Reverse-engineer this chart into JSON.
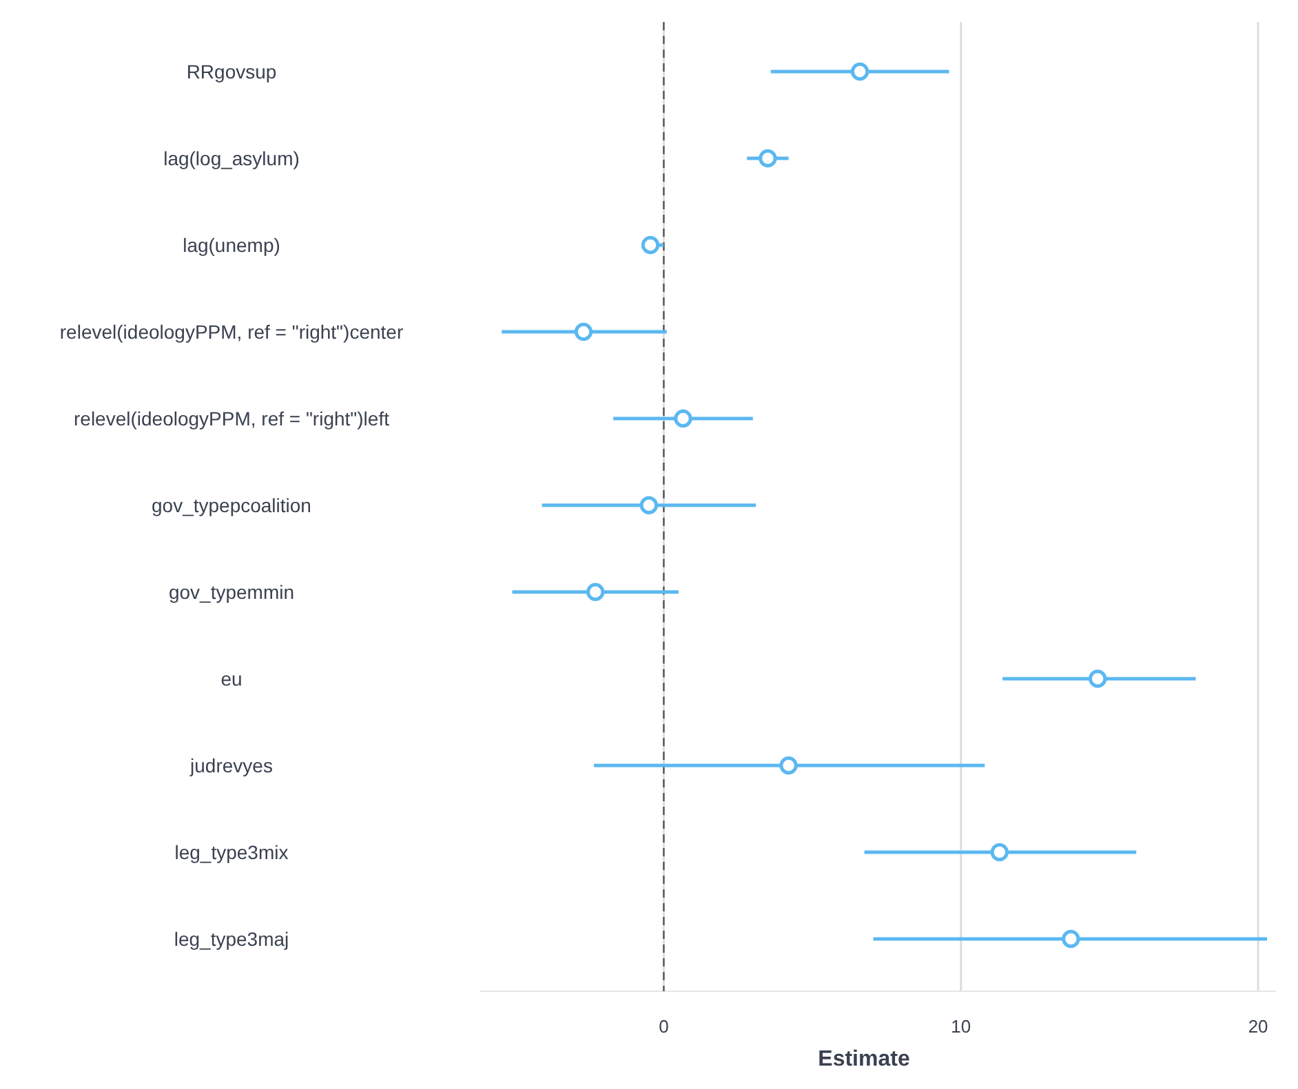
{
  "chart_data": {
    "type": "scatter",
    "orientation": "horizontal",
    "xlabel": "Estimate",
    "categories": [
      "RRgovsup",
      "lag(log_asylum)",
      "lag(unemp)",
      "relevel(ideologyPPM, ref = \"right\")center",
      "relevel(ideologyPPM, ref = \"right\")left",
      "gov_typepcoalition",
      "gov_typemmin",
      "eu",
      "judrevyes",
      "leg_type3mix",
      "leg_type3maj"
    ],
    "series": [
      {
        "color": "#5bb8f0",
        "values": [
          6.6,
          3.5,
          -0.45,
          -2.7,
          0.65,
          -0.5,
          -2.3,
          14.6,
          4.2,
          11.3,
          13.7
        ],
        "errors": [
          [
            3.6,
            9.6
          ],
          [
            2.8,
            4.2
          ],
          [
            -0.75,
            0.0
          ],
          [
            -5.45,
            0.1
          ],
          [
            -1.7,
            3.0
          ],
          [
            -4.1,
            3.1
          ],
          [
            -5.1,
            0.5
          ],
          [
            11.4,
            17.9
          ],
          [
            -2.35,
            10.8
          ],
          [
            6.75,
            15.9
          ],
          [
            7.05,
            20.3
          ]
        ]
      }
    ],
    "xlim": [
      -6.2,
      20.6
    ],
    "xticks": [
      0,
      10,
      20
    ],
    "grid": "x",
    "marker": "circle",
    "ref_lines": [
      {
        "axis": "x",
        "value": 0,
        "line_style": "dashed",
        "color": "#555555"
      }
    ]
  }
}
